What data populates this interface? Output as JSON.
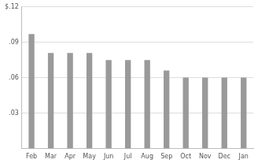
{
  "chart_data": {
    "type": "bar",
    "categories": [
      "Feb",
      "Mar",
      "Apr",
      "May",
      "Jun",
      "Jul",
      "Aug",
      "Sep",
      "Oct",
      "Nov",
      "Dec",
      "Jan"
    ],
    "values": [
      0.097,
      0.081,
      0.081,
      0.081,
      0.075,
      0.075,
      0.075,
      0.066,
      0.06,
      0.06,
      0.06,
      0.06
    ],
    "color": "#9a9a9a",
    "ylim": [
      0,
      0.12
    ],
    "yticks": [
      {
        "value": 0.03,
        "label": ".03"
      },
      {
        "value": 0.06,
        "label": ".06"
      },
      {
        "value": 0.09,
        "label": ".09"
      },
      {
        "value": 0.12,
        "label": "$.12"
      }
    ],
    "grid": true
  }
}
